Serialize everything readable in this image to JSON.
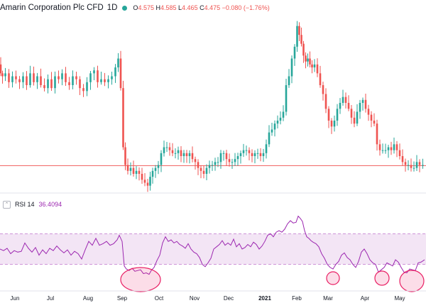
{
  "legend": {
    "symbol": "Amarin Corporation Plc CFD",
    "interval": "1D",
    "ohlc_o_key": "O",
    "ohlc_o": "4.575",
    "ohlc_h_key": "H",
    "ohlc_h": "4.585",
    "ohlc_l_key": "L",
    "ohlc_l": "4.465",
    "ohlc_c_key": "C",
    "ohlc_c": "4.475",
    "change": "−0.080 (−1.76%)"
  },
  "rsi_legend": {
    "name": "RSI",
    "length": "14",
    "value": "36.4094"
  },
  "colors": {
    "up": "#26a69a",
    "down": "#ef5350",
    "rsi": "#9c27b0",
    "band": "#f3e5f5",
    "highlight": "#e91e63",
    "price_line": "#ef5350"
  },
  "chart_data": [
    {
      "type": "candlestick",
      "title": "Amarin Corporation Plc CFD",
      "interval": "1D",
      "x_ticks": [
        "Jun",
        "Jul",
        "Aug",
        "Sep",
        "Oct",
        "Nov",
        "Dec",
        "2021",
        "Feb",
        "Mar",
        "Apr",
        "May"
      ],
      "bold_ticks": [
        "2021"
      ],
      "ylim": [
        3.6,
        9.6
      ],
      "current_price": 4.475,
      "close_series": [
        [
          0,
          7.9
        ],
        [
          2,
          7.6
        ],
        [
          5,
          7.5
        ],
        [
          10,
          7.6
        ],
        [
          15,
          7.3
        ],
        [
          20,
          7.5
        ],
        [
          25,
          7.4
        ],
        [
          30,
          7.3
        ],
        [
          35,
          7.5
        ],
        [
          40,
          7.2
        ],
        [
          45,
          7.6
        ],
        [
          50,
          7.3
        ],
        [
          55,
          7.5
        ],
        [
          60,
          7.2
        ],
        [
          65,
          7.1
        ],
        [
          70,
          7.4
        ],
        [
          75,
          7.1
        ],
        [
          80,
          7.5
        ],
        [
          85,
          7.4
        ],
        [
          90,
          7.6
        ],
        [
          95,
          7.3
        ],
        [
          100,
          7.2
        ],
        [
          105,
          7.5
        ],
        [
          110,
          7.4
        ],
        [
          115,
          7.1
        ],
        [
          120,
          7.0
        ],
        [
          125,
          7.3
        ],
        [
          130,
          7.6
        ],
        [
          135,
          7.7
        ],
        [
          140,
          7.3
        ],
        [
          145,
          7.4
        ],
        [
          150,
          7.3
        ],
        [
          155,
          7.4
        ],
        [
          160,
          7.5
        ],
        [
          165,
          7.8
        ],
        [
          168,
          8.1
        ],
        [
          172,
          7.1
        ],
        [
          175,
          5.1
        ],
        [
          178,
          4.5
        ],
        [
          182,
          4.3
        ],
        [
          186,
          4.4
        ],
        [
          190,
          4.2
        ],
        [
          194,
          4.3
        ],
        [
          198,
          4.2
        ],
        [
          202,
          4.0
        ],
        [
          206,
          3.9
        ],
        [
          210,
          3.8
        ],
        [
          213,
          4.1
        ],
        [
          217,
          4.3
        ],
        [
          221,
          4.4
        ],
        [
          225,
          4.5
        ],
        [
          229,
          4.9
        ],
        [
          233,
          5.1
        ],
        [
          237,
          5.1
        ],
        [
          241,
          5.0
        ],
        [
          245,
          4.9
        ],
        [
          249,
          4.9
        ],
        [
          253,
          5.0
        ],
        [
          257,
          4.8
        ],
        [
          261,
          4.9
        ],
        [
          265,
          4.8
        ],
        [
          269,
          4.9
        ],
        [
          273,
          4.7
        ],
        [
          277,
          4.6
        ],
        [
          281,
          4.4
        ],
        [
          285,
          4.3
        ],
        [
          289,
          4.2
        ],
        [
          293,
          4.4
        ],
        [
          297,
          4.5
        ],
        [
          301,
          4.5
        ],
        [
          305,
          4.6
        ],
        [
          309,
          4.6
        ],
        [
          313,
          4.9
        ],
        [
          317,
          4.9
        ],
        [
          321,
          4.7
        ],
        [
          325,
          4.6
        ],
        [
          329,
          4.6
        ],
        [
          333,
          4.7
        ],
        [
          337,
          4.8
        ],
        [
          341,
          4.9
        ],
        [
          345,
          5.0
        ],
        [
          349,
          5.0
        ],
        [
          353,
          4.9
        ],
        [
          357,
          4.8
        ],
        [
          361,
          4.9
        ],
        [
          365,
          4.9
        ],
        [
          369,
          4.8
        ],
        [
          373,
          4.9
        ],
        [
          377,
          5.2
        ],
        [
          381,
          5.6
        ],
        [
          385,
          5.7
        ],
        [
          389,
          5.9
        ],
        [
          393,
          6.0
        ],
        [
          397,
          6.1
        ],
        [
          401,
          6.3
        ],
        [
          405,
          7.2
        ],
        [
          409,
          7.5
        ],
        [
          413,
          8.1
        ],
        [
          417,
          8.5
        ],
        [
          420,
          9.2
        ],
        [
          423,
          8.9
        ],
        [
          426,
          8.6
        ],
        [
          429,
          8.2
        ],
        [
          432,
          8.0
        ],
        [
          435,
          8.1
        ],
        [
          438,
          7.9
        ],
        [
          441,
          7.8
        ],
        [
          445,
          7.9
        ],
        [
          449,
          7.6
        ],
        [
          453,
          7.2
        ],
        [
          457,
          6.9
        ],
        [
          461,
          6.4
        ],
        [
          465,
          6.0
        ],
        [
          469,
          5.8
        ],
        [
          473,
          6.0
        ],
        [
          477,
          6.4
        ],
        [
          481,
          6.6
        ],
        [
          485,
          6.8
        ],
        [
          489,
          6.6
        ],
        [
          493,
          6.4
        ],
        [
          497,
          6.1
        ],
        [
          501,
          5.9
        ],
        [
          505,
          6.3
        ],
        [
          509,
          6.6
        ],
        [
          513,
          6.7
        ],
        [
          517,
          6.4
        ],
        [
          521,
          6.2
        ],
        [
          525,
          6.0
        ],
        [
          529,
          5.9
        ],
        [
          533,
          5.2
        ],
        [
          537,
          5.0
        ],
        [
          541,
          5.0
        ],
        [
          545,
          5.0
        ],
        [
          549,
          5.1
        ],
        [
          553,
          5.0
        ],
        [
          557,
          5.2
        ],
        [
          561,
          5.0
        ],
        [
          565,
          4.8
        ],
        [
          569,
          4.6
        ],
        [
          573,
          4.5
        ],
        [
          577,
          4.5
        ],
        [
          581,
          4.4
        ],
        [
          585,
          4.4
        ],
        [
          589,
          4.6
        ],
        [
          593,
          4.5
        ],
        [
          598,
          4.5
        ]
      ]
    },
    {
      "type": "line",
      "title": "RSI 14",
      "value": "36.4094",
      "ylim": [
        0,
        100
      ],
      "band": [
        30,
        70
      ],
      "series": [
        {
          "name": "RSI 14",
          "points": [
            [
              0,
              50
            ],
            [
              5,
              48
            ],
            [
              10,
              51
            ],
            [
              15,
              44
            ],
            [
              20,
              48
            ],
            [
              25,
              46
            ],
            [
              30,
              47
            ],
            [
              35,
              58
            ],
            [
              40,
              51
            ],
            [
              45,
              46
            ],
            [
              50,
              52
            ],
            [
              55,
              42
            ],
            [
              60,
              49
            ],
            [
              65,
              44
            ],
            [
              70,
              51
            ],
            [
              75,
              48
            ],
            [
              80,
              54
            ],
            [
              85,
              49
            ],
            [
              90,
              45
            ],
            [
              95,
              49
            ],
            [
              100,
              42
            ],
            [
              105,
              47
            ],
            [
              110,
              44
            ],
            [
              115,
              37
            ],
            [
              120,
              49
            ],
            [
              125,
              60
            ],
            [
              130,
              55
            ],
            [
              135,
              64
            ],
            [
              140,
              55
            ],
            [
              145,
              57
            ],
            [
              150,
              60
            ],
            [
              155,
              55
            ],
            [
              160,
              57
            ],
            [
              165,
              62
            ],
            [
              168,
              68
            ],
            [
              172,
              60
            ],
            [
              175,
              28
            ],
            [
              178,
              24
            ],
            [
              182,
              22
            ],
            [
              186,
              25
            ],
            [
              190,
              21
            ],
            [
              194,
              22
            ],
            [
              198,
              23
            ],
            [
              202,
              18
            ],
            [
              206,
              19
            ],
            [
              210,
              17
            ],
            [
              213,
              22
            ],
            [
              217,
              26
            ],
            [
              221,
              35
            ],
            [
              225,
              42
            ],
            [
              229,
              58
            ],
            [
              233,
              66
            ],
            [
              237,
              60
            ],
            [
              241,
              62
            ],
            [
              245,
              58
            ],
            [
              249,
              60
            ],
            [
              253,
              56
            ],
            [
              257,
              54
            ],
            [
              261,
              51
            ],
            [
              265,
              57
            ],
            [
              269,
              50
            ],
            [
              273,
              46
            ],
            [
              277,
              44
            ],
            [
              281,
              39
            ],
            [
              285,
              30
            ],
            [
              289,
              27
            ],
            [
              293,
              32
            ],
            [
              297,
              38
            ],
            [
              301,
              50
            ],
            [
              305,
              53
            ],
            [
              309,
              56
            ],
            [
              313,
              61
            ],
            [
              317,
              55
            ],
            [
              321,
              58
            ],
            [
              325,
              55
            ],
            [
              329,
              63
            ],
            [
              333,
              53
            ],
            [
              337,
              57
            ],
            [
              341,
              50
            ],
            [
              345,
              52
            ],
            [
              349,
              56
            ],
            [
              353,
              53
            ],
            [
              357,
              59
            ],
            [
              361,
              56
            ],
            [
              365,
              50
            ],
            [
              369,
              54
            ],
            [
              373,
              60
            ],
            [
              377,
              68
            ],
            [
              381,
              70
            ],
            [
              385,
              66
            ],
            [
              389,
              72
            ],
            [
              393,
              74
            ],
            [
              397,
              72
            ],
            [
              401,
              76
            ],
            [
              405,
              83
            ],
            [
              409,
              87
            ],
            [
              413,
              84
            ],
            [
              417,
              85
            ],
            [
              420,
              93
            ],
            [
              423,
              90
            ],
            [
              426,
              86
            ],
            [
              429,
              74
            ],
            [
              432,
              66
            ],
            [
              435,
              64
            ],
            [
              438,
              61
            ],
            [
              441,
              59
            ],
            [
              445,
              57
            ],
            [
              449,
              53
            ],
            [
              453,
              44
            ],
            [
              457,
              38
            ],
            [
              461,
              30
            ],
            [
              465,
              26
            ],
            [
              469,
              24
            ],
            [
              473,
              30
            ],
            [
              477,
              34
            ],
            [
              481,
              42
            ],
            [
              485,
              45
            ],
            [
              489,
              39
            ],
            [
              493,
              36
            ],
            [
              497,
              30
            ],
            [
              501,
              26
            ],
            [
              505,
              34
            ],
            [
              509,
              46
            ],
            [
              513,
              50
            ],
            [
              517,
              44
            ],
            [
              521,
              36
            ],
            [
              525,
              32
            ],
            [
              529,
              30
            ],
            [
              533,
              20
            ],
            [
              537,
              23
            ],
            [
              541,
              26
            ],
            [
              545,
              32
            ],
            [
              549,
              30
            ],
            [
              553,
              28
            ],
            [
              557,
              36
            ],
            [
              561,
              33
            ],
            [
              565,
              26
            ],
            [
              569,
              20
            ],
            [
              573,
              19
            ],
            [
              577,
              24
            ],
            [
              581,
              23
            ],
            [
              585,
              22
            ],
            [
              589,
              32
            ],
            [
              593,
              33
            ],
            [
              598,
              36
            ]
          ]
        }
      ],
      "highlights": [
        "Sep",
        "Mar",
        "Apr",
        "May"
      ]
    }
  ]
}
